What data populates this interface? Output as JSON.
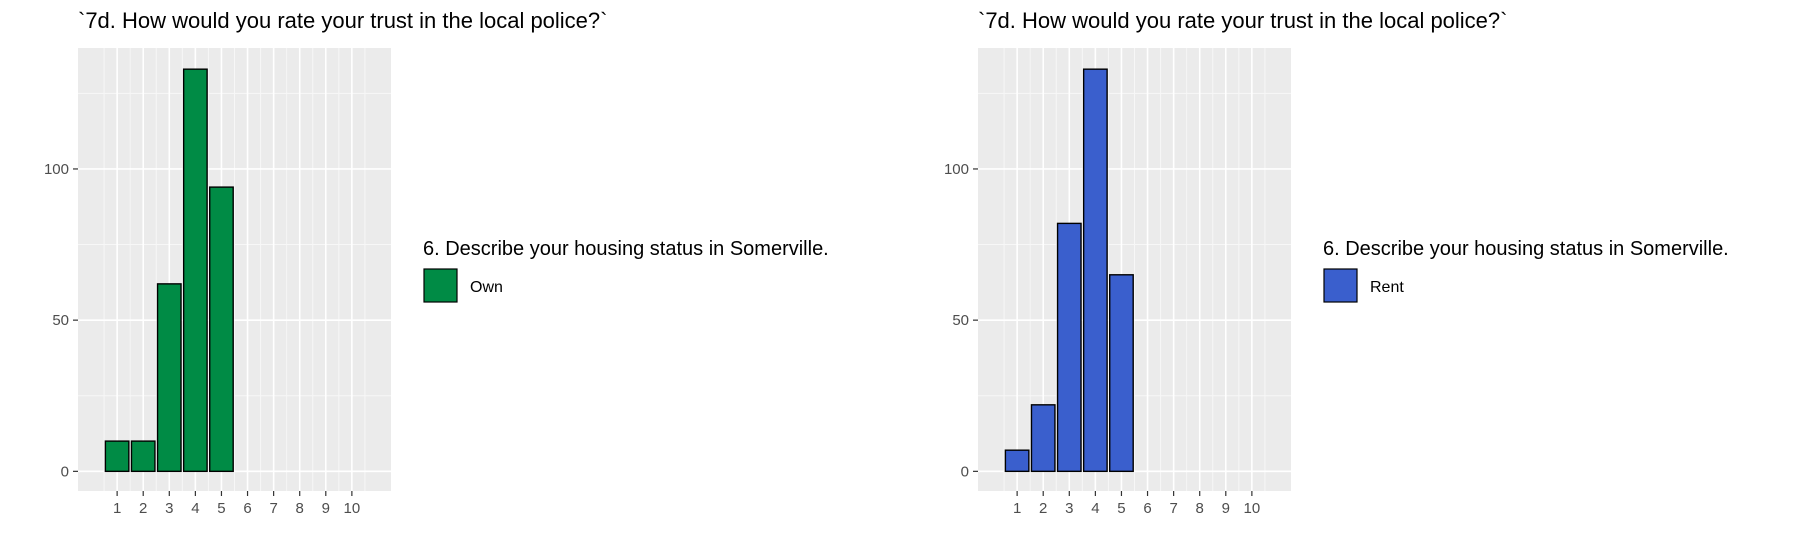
{
  "chart_data": [
    {
      "type": "bar",
      "title": "`7d. How would you rate your trust in the local police?`",
      "xlabel": "",
      "ylabel": "",
      "x_ticks": [
        "1",
        "2",
        "3",
        "4",
        "5",
        "6",
        "7",
        "8",
        "9",
        "10"
      ],
      "categories": [
        "1",
        "2",
        "3",
        "4",
        "5"
      ],
      "y_ticks": [
        0,
        50,
        100
      ],
      "ylim": [
        -6.5,
        140
      ],
      "xlim": [
        -0.5,
        11.5
      ],
      "grid": true,
      "legend": {
        "title": "6. Describe your housing status in Somerville.",
        "position": "right"
      },
      "series": [
        {
          "name": "Own",
          "color": "#008B45",
          "values": [
            10,
            10,
            62,
            133,
            94
          ]
        }
      ]
    },
    {
      "type": "bar",
      "title": "`7d. How would you rate your trust in the local police?`",
      "xlabel": "",
      "ylabel": "",
      "x_ticks": [
        "1",
        "2",
        "3",
        "4",
        "5",
        "6",
        "7",
        "8",
        "9",
        "10"
      ],
      "categories": [
        "1",
        "2",
        "3",
        "4",
        "5"
      ],
      "y_ticks": [
        0,
        50,
        100
      ],
      "ylim": [
        -6.5,
        140
      ],
      "xlim": [
        -0.5,
        11.5
      ],
      "grid": true,
      "legend": {
        "title": "6. Describe your housing status in Somerville.",
        "position": "right"
      },
      "series": [
        {
          "name": "Rent",
          "color": "#3A5FCD",
          "values": [
            7,
            22,
            82,
            133,
            65
          ]
        }
      ]
    }
  ]
}
